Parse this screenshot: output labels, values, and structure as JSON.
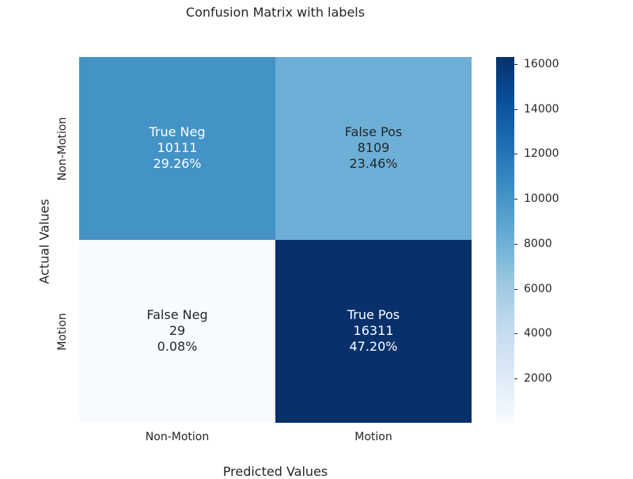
{
  "chart_data": {
    "type": "heatmap",
    "title": "Confusion Matrix with labels",
    "xlabel": "Predicted Values",
    "ylabel": "Actual Values",
    "x_categories": [
      "Non-Motion",
      "Motion"
    ],
    "y_categories": [
      "Non-Motion",
      "Motion"
    ],
    "cells": [
      [
        {
          "name": "True Neg",
          "count": "10111",
          "percent": "29.26%",
          "value": 10111
        },
        {
          "name": "False Pos",
          "count": "8109",
          "percent": "23.46%",
          "value": 8109
        }
      ],
      [
        {
          "name": "False Neg",
          "count": "29",
          "percent": "0.08%",
          "value": 29
        },
        {
          "name": "True Pos",
          "count": "16311",
          "percent": "47.20%",
          "value": 16311
        }
      ]
    ],
    "colorbar": {
      "colormap": "Blues",
      "range": [
        29,
        16311
      ],
      "ticks": [
        "2000",
        "4000",
        "6000",
        "8000",
        "10000",
        "12000",
        "14000",
        "16000"
      ]
    }
  }
}
